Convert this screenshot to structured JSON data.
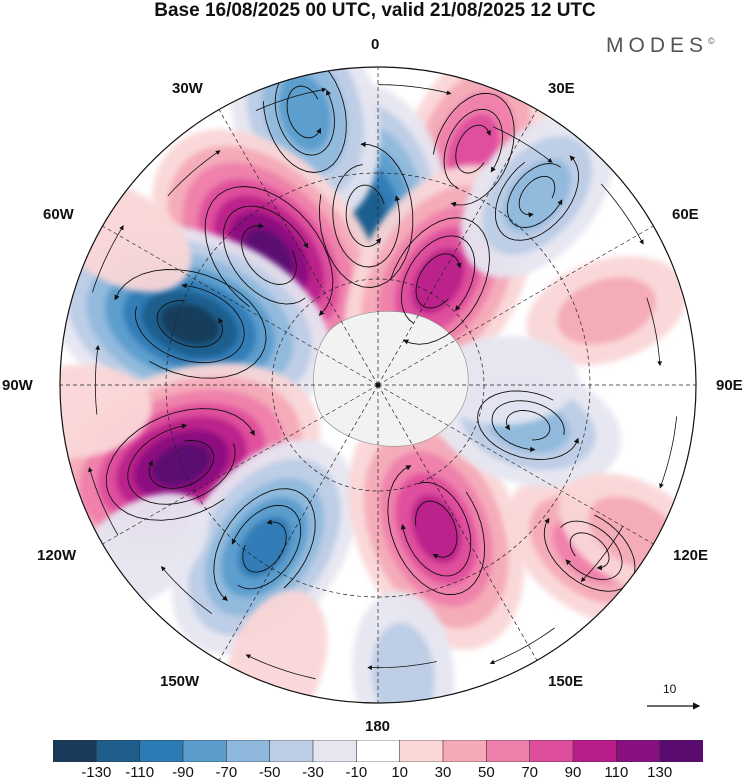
{
  "title": "Base 16/08/2025 00 UTC, valid 21/08/2025 12 UTC",
  "brand": {
    "name": "MODES",
    "mark": "©"
  },
  "longitude_labels": {
    "lon_0": "0",
    "lon_30e": "30E",
    "lon_60e": "60E",
    "lon_90e": "90E",
    "lon_120e": "120E",
    "lon_150e": "150E",
    "lon_180": "180",
    "lon_150w": "150W",
    "lon_120w": "120W",
    "lon_90w": "90W",
    "lon_60w": "60W",
    "lon_30w": "30W"
  },
  "reference_vector": {
    "label": "10"
  },
  "colorbar": {
    "colors": [
      "#183b5a",
      "#1e5d8c",
      "#2d7bb5",
      "#5a9ccb",
      "#8eb8dc",
      "#bccde6",
      "#e6e6f1",
      "#ffffff",
      "#fad6d7",
      "#f5aab7",
      "#ee7eaa",
      "#de4c9c",
      "#b91d8a",
      "#8a0f80",
      "#5a0b70"
    ],
    "tick_labels": [
      "-130",
      "-110",
      "-90",
      "-70",
      "-50",
      "-30",
      "-10",
      "10",
      "30",
      "50",
      "70",
      "90",
      "110",
      "130"
    ]
  },
  "anomaly_centers": [
    {
      "name": "high-0e",
      "value": 80,
      "lon": 22,
      "colat": 36
    },
    {
      "name": "low-0",
      "value": -120,
      "lon": -4,
      "colat": 24
    },
    {
      "name": "low-north-0",
      "value": -90,
      "lon": -15,
      "colat": 40
    },
    {
      "name": "high-45w",
      "value": 140,
      "lon": -40,
      "colat": 24
    },
    {
      "name": "low-75w",
      "value": -140,
      "lon": -72,
      "colat": 28
    },
    {
      "name": "high-110w",
      "value": 140,
      "lon": -112,
      "colat": 30
    },
    {
      "name": "low-145w",
      "value": -100,
      "lon": -145,
      "colat": 28
    },
    {
      "name": "high-150e",
      "value": 110,
      "lon": 158,
      "colat": 22
    },
    {
      "name": "high-140e",
      "value": 60,
      "lon": 128,
      "colat": 38
    },
    {
      "name": "low-180",
      "value": -40,
      "lon": 175,
      "colat": 41
    },
    {
      "name": "high-30e-near",
      "value": 110,
      "lon": 30,
      "colat": 17
    },
    {
      "name": "low-45e",
      "value": -60,
      "lon": 40,
      "colat": 35
    },
    {
      "name": "low-110e",
      "value": -60,
      "lon": 105,
      "colat": 22
    },
    {
      "name": "high-70e",
      "value": 40,
      "lon": 72,
      "colat": 34
    },
    {
      "name": "high-95w-outer",
      "value": 30,
      "lon": -95,
      "colat": 43
    },
    {
      "name": "low-125w-outer",
      "value": -30,
      "lon": -125,
      "colat": 41
    },
    {
      "name": "high-160w-outer",
      "value": 30,
      "lon": -160,
      "colat": 42
    },
    {
      "name": "high-120e-outer",
      "value": 40,
      "lon": 120,
      "colat": 42
    },
    {
      "name": "low-90e",
      "value": -25,
      "lon": 88,
      "colat": 18
    },
    {
      "name": "high-60w-outer",
      "value": 30,
      "lon": -60,
      "colat": 42
    }
  ]
}
